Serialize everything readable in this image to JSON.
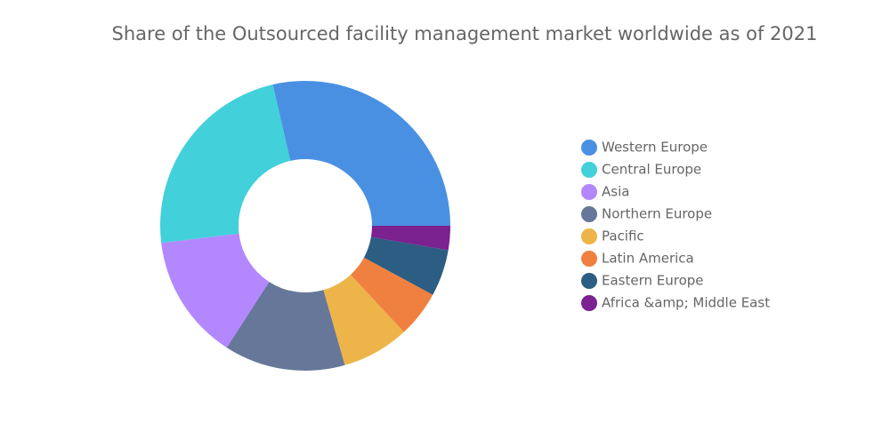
{
  "chart_data": {
    "type": "donut",
    "title": "Share of the Outsourced facility management market worldwide as of 2021",
    "categories": [
      "Western Europe",
      "Central Europe",
      "Asia",
      "Northern Europe",
      "Pacific",
      "Latin America",
      "Eastern Europe",
      "Africa &amp; Middle East"
    ],
    "values": [
      28.6,
      23.3,
      14,
      13.5,
      7.5,
      5.2,
      5.2,
      2.7
    ],
    "colors": [
      "#4a90e2",
      "#42d0da",
      "#b388ff",
      "#667799",
      "#edb449",
      "#f08040",
      "#2c5d82",
      "#7b2190"
    ],
    "legend": "right"
  }
}
